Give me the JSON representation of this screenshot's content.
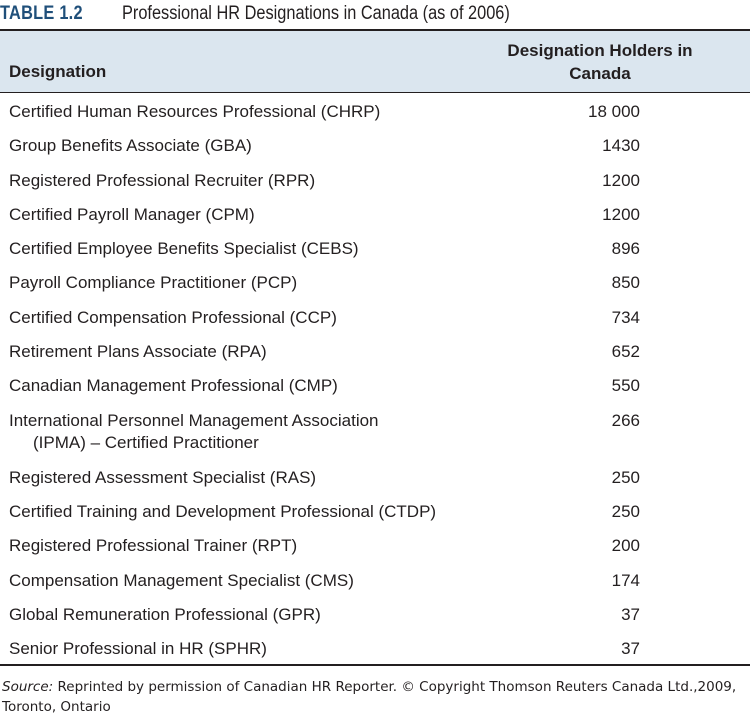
{
  "caption": {
    "label": "TABLE 1.2",
    "title": "Professional HR Designations in Canada (as of 2006)"
  },
  "table": {
    "headers": {
      "designation": "Designation",
      "holders": "Designation Holders in Canada"
    },
    "rows": [
      {
        "designation": "Certified Human Resources Professional (CHRP)",
        "holders": "18 000"
      },
      {
        "designation": "Group Benefits Associate (GBA)",
        "holders": "1430"
      },
      {
        "designation": "Registered Professional Recruiter (RPR)",
        "holders": "1200"
      },
      {
        "designation": "Certified Payroll Manager (CPM)",
        "holders": "1200"
      },
      {
        "designation": "Certified Employee Benefits Specialist (CEBS)",
        "holders": "896"
      },
      {
        "designation": "Payroll Compliance Practitioner (PCP)",
        "holders": "850"
      },
      {
        "designation": "Certified Compensation Professional (CCP)",
        "holders": "734"
      },
      {
        "designation": "Retirement Plans Associate (RPA)",
        "holders": "652"
      },
      {
        "designation": "Canadian Management Professional (CMP)",
        "holders": "550"
      },
      {
        "designation": "International Personnel Management Association",
        "designation_line2": "(IPMA) – Certified Practitioner",
        "holders": "266"
      },
      {
        "designation": "Registered Assessment Specialist (RAS)",
        "holders": "250"
      },
      {
        "designation": "Certified Training and Development Professional (CTDP)",
        "holders": "250"
      },
      {
        "designation": "Registered Professional Trainer (RPT)",
        "holders": "200"
      },
      {
        "designation": "Compensation Management Specialist (CMS)",
        "holders": "174"
      },
      {
        "designation": "Global Remuneration Professional (GPR)",
        "holders": "37"
      },
      {
        "designation": "Senior Professional in HR (SPHR)",
        "holders": "37"
      }
    ]
  },
  "source": {
    "label": "Source:",
    "text": "Reprinted by permission of Canadian HR Reporter. © Copyright Thomson Reuters Canada Ltd.,2009, Toronto, Ontario"
  },
  "colors": {
    "accent": "#1f4f7a",
    "header_background": "#dbe6ef",
    "text": "#231f20"
  }
}
